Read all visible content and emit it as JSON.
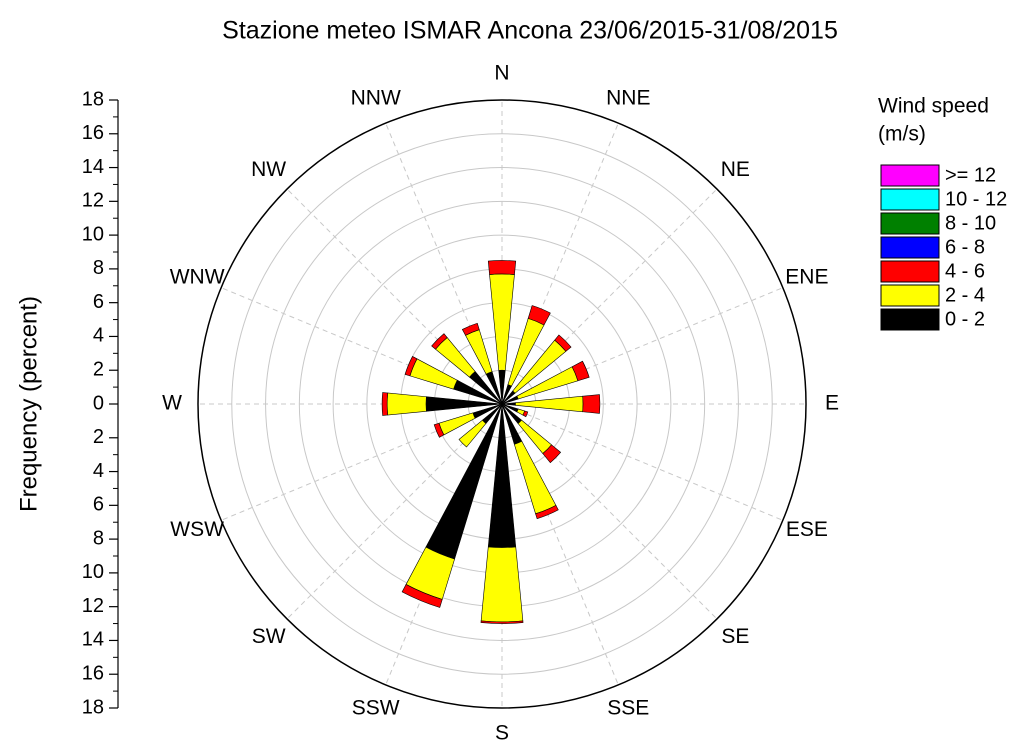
{
  "chart_data": {
    "type": "windrose",
    "title": "Stazione meteo ISMAR Ancona 23/06/2015-31/08/2015",
    "y_label": "Frequency (percent)",
    "legend_title": [
      "Wind speed",
      "(m/s)"
    ],
    "categories": [
      "N",
      "NNE",
      "NE",
      "ENE",
      "E",
      "ESE",
      "SE",
      "SSE",
      "S",
      "SSW",
      "SW",
      "WSW",
      "W",
      "WNW",
      "NW",
      "NNW"
    ],
    "series": [
      {
        "name": "0 - 2",
        "color": "#000000",
        "values": [
          2.0,
          1.2,
          1.0,
          1.0,
          0.8,
          1.0,
          1.5,
          2.5,
          8.5,
          9.6,
          1.5,
          1.8,
          4.5,
          3.0,
          2.5,
          2.0
        ]
      },
      {
        "name": "2 - 4",
        "color": "#ffff00",
        "values": [
          5.7,
          4.1,
          3.9,
          3.7,
          4.0,
          0.4,
          2.3,
          4.3,
          4.4,
          2.5,
          1.8,
          2.1,
          2.3,
          2.7,
          2.6,
          2.6
        ]
      },
      {
        "name": "4 - 6",
        "color": "#ff0000",
        "values": [
          0.8,
          0.8,
          0.4,
          0.7,
          1.0,
          0.2,
          0.7,
          0.3,
          0.1,
          0.5,
          0,
          0.3,
          0.3,
          0.3,
          0.3,
          0.4
        ]
      },
      {
        "name": "6 - 8",
        "color": "#0000ff",
        "values": [
          0,
          0,
          0,
          0,
          0,
          0,
          0,
          0,
          0,
          0,
          0,
          0,
          0,
          0,
          0,
          0
        ]
      },
      {
        "name": "8 - 10",
        "color": "#008000",
        "values": [
          0,
          0,
          0,
          0,
          0,
          0,
          0,
          0,
          0,
          0,
          0,
          0,
          0,
          0,
          0,
          0
        ]
      },
      {
        "name": "10 - 12",
        "color": "#00ffff",
        "values": [
          0,
          0,
          0,
          0,
          0,
          0,
          0,
          0,
          0,
          0,
          0,
          0,
          0,
          0,
          0,
          0
        ]
      },
      {
        "name": ">= 12",
        "color": "#ff00ff",
        "values": [
          0,
          0,
          0,
          0,
          0,
          0,
          0,
          0,
          0,
          0,
          0,
          0,
          0,
          0,
          0,
          0
        ]
      }
    ],
    "rlim": [
      0,
      18
    ],
    "rticks": [
      0,
      2,
      4,
      6,
      8,
      10,
      12,
      14,
      16,
      18
    ],
    "grid": true
  }
}
